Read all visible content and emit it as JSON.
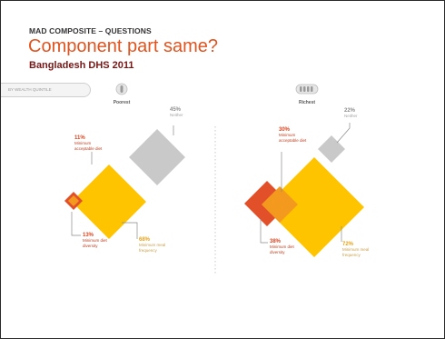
{
  "slide": {
    "kicker": "MAD COMPOSITE – QUESTIONS",
    "title": "Component part same?",
    "subtitle": "Bangladesh DHS 2011",
    "quintile_selector_label": "BY WEALTH QUINTILE"
  },
  "poorest": {
    "label": "Poorest",
    "neither_pct": "45%",
    "neither_label": "Neither",
    "mad_pct": "11%",
    "mad_label": "Minimum acceptable diet",
    "mdd_pct": "13%",
    "mdd_label": "Minimum diet diversity",
    "mmf_pct": "68%",
    "mmf_label": "Minimum meal frequency"
  },
  "richest": {
    "label": "Richest",
    "neither_pct": "22%",
    "neither_label": "Neither",
    "mad_pct": "30%",
    "mad_label": "Minimum acceptable diet",
    "mdd_pct": "38%",
    "mdd_label": "Minimum diet diversity",
    "mmf_pct": "72%",
    "mmf_label": "Minimum meal frequency"
  },
  "colors": {
    "title": "#e0541f",
    "subtitle": "#7a1616",
    "meal_frequency": "#ffc400",
    "diet_diversity": "#e2502a",
    "acceptable_diet": "#f39a1e",
    "neither": "#c9c9c9",
    "leader_line": "#8a8a8a"
  }
}
